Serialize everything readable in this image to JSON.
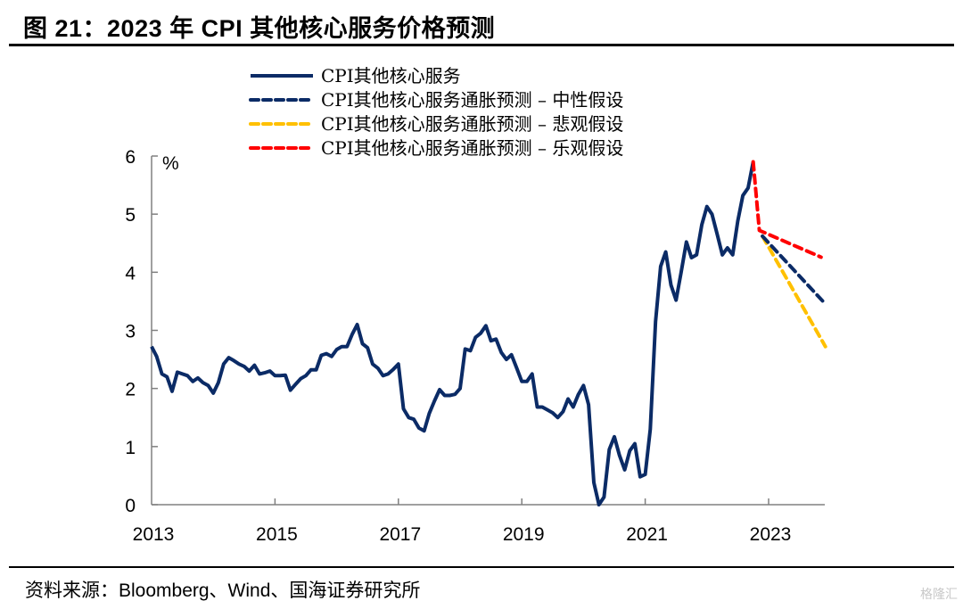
{
  "header": {
    "title": "图 21：2023 年 CPI 其他核心服务价格预测"
  },
  "footer": {
    "source": "资料来源：Bloomberg、Wind、国海证券研究所",
    "watermark": "格隆汇"
  },
  "chart_data": {
    "type": "line",
    "title": "图 21：2023 年 CPI 其他核心服务价格预测",
    "xlabel": "",
    "ylabel": "%",
    "ylim": [
      0,
      6
    ],
    "xlim": [
      2013.0,
      2023.92
    ],
    "yticks": [
      "0",
      "1",
      "2",
      "3",
      "4",
      "5",
      "6"
    ],
    "xticks": [
      "2013",
      "2015",
      "2017",
      "2019",
      "2021",
      "2023"
    ],
    "grid": false,
    "legend_position": "top",
    "series": [
      {
        "name": "CPI其他核心服务",
        "style": "solid",
        "color": "#0b2b66",
        "x": [
          2013.0,
          2013.083,
          2013.167,
          2013.25,
          2013.333,
          2013.417,
          2013.5,
          2013.583,
          2013.667,
          2013.75,
          2013.833,
          2013.917,
          2014.0,
          2014.083,
          2014.167,
          2014.25,
          2014.333,
          2014.417,
          2014.5,
          2014.583,
          2014.667,
          2014.75,
          2014.833,
          2014.917,
          2015.0,
          2015.083,
          2015.167,
          2015.25,
          2015.333,
          2015.417,
          2015.5,
          2015.583,
          2015.667,
          2015.75,
          2015.833,
          2015.917,
          2016.0,
          2016.083,
          2016.167,
          2016.25,
          2016.333,
          2016.417,
          2016.5,
          2016.583,
          2016.667,
          2016.75,
          2016.833,
          2016.917,
          2017.0,
          2017.083,
          2017.167,
          2017.25,
          2017.333,
          2017.417,
          2017.5,
          2017.583,
          2017.667,
          2017.75,
          2017.833,
          2017.917,
          2018.0,
          2018.083,
          2018.167,
          2018.25,
          2018.333,
          2018.417,
          2018.5,
          2018.583,
          2018.667,
          2018.75,
          2018.833,
          2018.917,
          2019.0,
          2019.083,
          2019.167,
          2019.25,
          2019.333,
          2019.417,
          2019.5,
          2019.583,
          2019.667,
          2019.75,
          2019.833,
          2019.917,
          2020.0,
          2020.083,
          2020.167,
          2020.25,
          2020.333,
          2020.417,
          2020.5,
          2020.583,
          2020.667,
          2020.75,
          2020.833,
          2020.917,
          2021.0,
          2021.083,
          2021.167,
          2021.25,
          2021.333,
          2021.417,
          2021.5,
          2021.583,
          2021.667,
          2021.75,
          2021.833,
          2021.917,
          2022.0,
          2022.083,
          2022.167,
          2022.25,
          2022.333,
          2022.417,
          2022.5,
          2022.583,
          2022.667,
          2022.75
        ],
        "values": [
          2.72,
          2.55,
          2.25,
          2.2,
          1.95,
          2.28,
          2.25,
          2.22,
          2.12,
          2.18,
          2.1,
          2.05,
          1.92,
          2.1,
          2.42,
          2.53,
          2.48,
          2.42,
          2.38,
          2.3,
          2.4,
          2.25,
          2.27,
          2.3,
          2.22,
          2.22,
          2.23,
          1.97,
          2.07,
          2.17,
          2.22,
          2.32,
          2.32,
          2.57,
          2.6,
          2.55,
          2.67,
          2.72,
          2.72,
          2.93,
          3.1,
          2.77,
          2.7,
          2.42,
          2.35,
          2.22,
          2.25,
          2.33,
          2.42,
          1.65,
          1.5,
          1.47,
          1.32,
          1.27,
          1.57,
          1.78,
          1.98,
          1.88,
          1.88,
          1.9,
          2.0,
          2.68,
          2.65,
          2.88,
          2.95,
          3.08,
          2.82,
          2.85,
          2.62,
          2.5,
          2.58,
          2.35,
          2.12,
          2.12,
          2.25,
          1.68,
          1.68,
          1.63,
          1.58,
          1.5,
          1.6,
          1.82,
          1.68,
          1.9,
          2.05,
          1.72,
          0.38,
          0.0,
          0.13,
          0.95,
          1.17,
          0.85,
          0.6,
          0.93,
          1.05,
          0.48,
          0.52,
          1.3,
          3.15,
          4.1,
          4.35,
          3.78,
          3.52,
          4.0,
          4.52,
          4.25,
          4.3,
          4.82,
          5.13,
          5.0,
          4.65,
          4.3,
          4.42,
          4.3,
          4.88,
          5.32,
          5.45,
          5.9
        ]
      },
      {
        "name": "CPI其他核心服务通胀预测 – 中性假设",
        "style": "dashed",
        "color": "#0b2b66",
        "x": [
          2022.9,
          2023.88
        ],
        "values": [
          4.62,
          3.5
        ]
      },
      {
        "name": "CPI其他核心服务通胀预测 – 悲观假设",
        "style": "dashed",
        "color": "#ffc000",
        "x": [
          2022.9,
          2023.92
        ],
        "values": [
          4.62,
          2.72
        ]
      },
      {
        "name": "CPI其他核心服务通胀预测 – 乐观假设",
        "style": "dashed",
        "color": "#ff0000",
        "x": [
          2022.75,
          2022.85,
          2023.85
        ],
        "values": [
          5.9,
          4.72,
          4.26
        ]
      }
    ]
  }
}
